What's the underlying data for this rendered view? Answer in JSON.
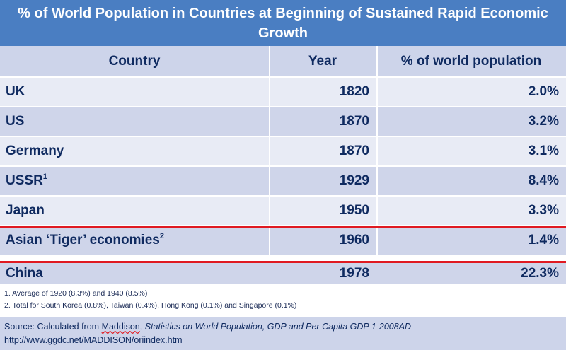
{
  "chart_data": {
    "type": "table",
    "title": "% of World Population in Countries at Beginning of Sustained Rapid Economic Growth",
    "columns": [
      "Country",
      "Year",
      "% of world population"
    ],
    "rows": [
      {
        "country": "UK",
        "sup": "",
        "year": "1820",
        "pct": "2.0%"
      },
      {
        "country": "US",
        "sup": "",
        "year": "1870",
        "pct": "3.2%"
      },
      {
        "country": "Germany",
        "sup": "",
        "year": "1870",
        "pct": "3.1%"
      },
      {
        "country": "USSR",
        "sup": "1",
        "year": "1929",
        "pct": "8.4%"
      },
      {
        "country": "Japan",
        "sup": "",
        "year": "1950",
        "pct": "3.3%"
      },
      {
        "country": "Asian ‘Tiger’ economies",
        "sup": "2",
        "year": "1960",
        "pct": "1.4%"
      },
      {
        "country": "China",
        "sup": "",
        "year": "1978",
        "pct": "22.3%"
      }
    ],
    "highlighted_row": "Asian ‘Tiger’ economies",
    "highlight_color": "#e01a22"
  },
  "notes": {
    "note1": "1. Average of 1920 (8.3%) and 1940 (8.5%)",
    "note2": "2. Total for South Korea (0.8%), Taiwan (0.4%), Hong Kong (0.1%) and Singapore (0.1%)"
  },
  "source": {
    "prefix": "Source: Calculated from ",
    "author": "Maddison",
    "sep": ", ",
    "work": "Statistics on World Population, GDP and Per Capita GDP 1-2008AD",
    "url": "http://www.ggdc.net/MADDISON/oriindex.htm"
  },
  "colors": {
    "title_bg": "#4a7ec2",
    "header_bg": "#cdd4ea",
    "row_light": "#e8ebf5",
    "row_dark": "#cfd5ea",
    "text": "#0f2a60"
  }
}
